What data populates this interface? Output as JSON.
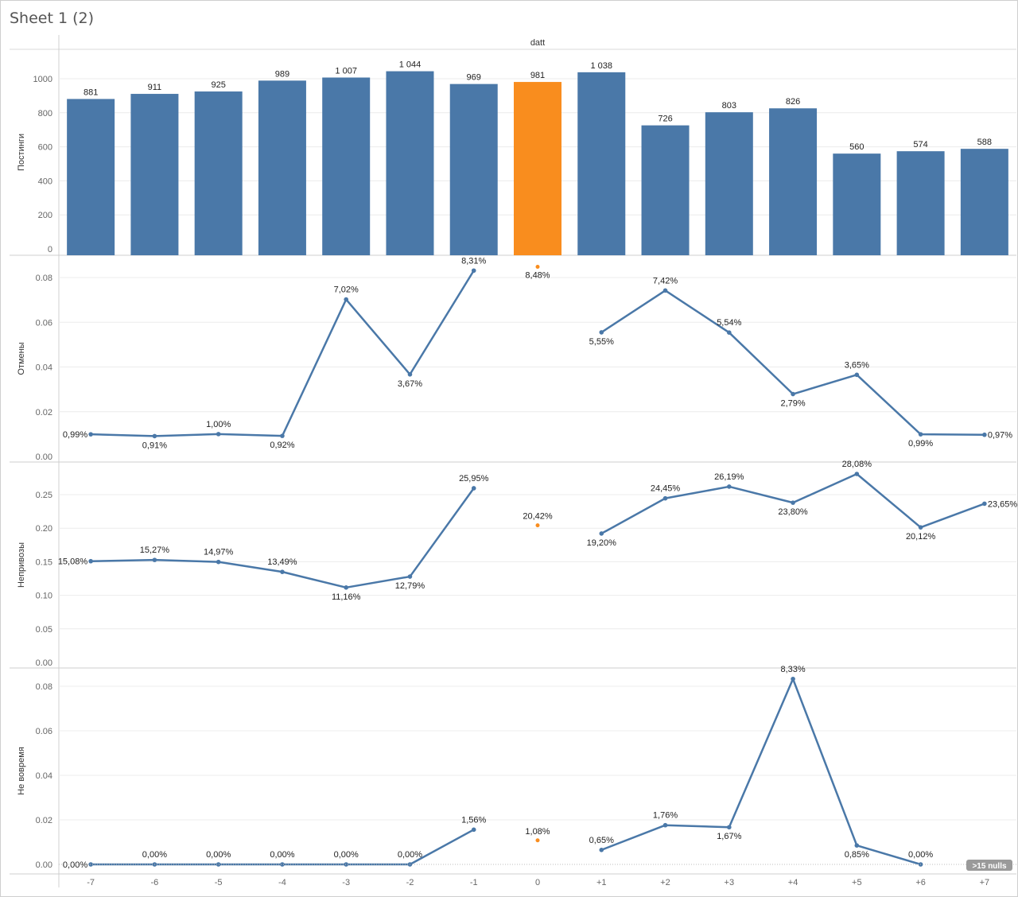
{
  "sheet_title": "Sheet 1 (2)",
  "column_header": "datt",
  "nulls_badge": ">15 nulls",
  "colors": {
    "bar": "#4a78a8",
    "highlight": "#f98d1e",
    "line": "#4a78a8",
    "grid": "#ececec"
  },
  "chart_data": [
    {
      "type": "bar",
      "ylabel": "Постинги",
      "categories": [
        "-7",
        "-6",
        "-5",
        "-4",
        "-3",
        "-2",
        "-1",
        "0",
        "+1",
        "+2",
        "+3",
        "+4",
        "+5",
        "+6",
        "+7"
      ],
      "values": [
        881,
        911,
        925,
        989,
        1007,
        1044,
        969,
        981,
        1038,
        726,
        803,
        826,
        560,
        574,
        588
      ],
      "value_labels": [
        "881",
        "911",
        "925",
        "989",
        "1 007",
        "1 044",
        "969",
        "981",
        "1 038",
        "726",
        "803",
        "826",
        "560",
        "574",
        "588"
      ],
      "highlight_category": "0",
      "ylim": [
        0,
        1150
      ],
      "yticks": [
        "0",
        "200",
        "400",
        "600",
        "800",
        "1000"
      ],
      "grid": true
    },
    {
      "type": "line",
      "ylabel": "Отмены",
      "categories": [
        "-7",
        "-6",
        "-5",
        "-4",
        "-3",
        "-2",
        "-1",
        "0",
        "+1",
        "+2",
        "+3",
        "+4",
        "+5",
        "+6",
        "+7"
      ],
      "values": [
        0.0099,
        0.0091,
        0.01,
        0.0092,
        0.0702,
        0.0367,
        0.0831,
        0.0848,
        0.0555,
        0.0742,
        0.0554,
        0.0279,
        0.0365,
        0.0099,
        0.0097
      ],
      "value_labels": [
        "0,99%",
        "0,91%",
        "1,00%",
        "0,92%",
        "7,02%",
        "3,67%",
        "8,31%",
        "8,48%",
        "5,55%",
        "7,42%",
        "5,54%",
        "2,79%",
        "3,65%",
        "0,99%",
        "0,97%"
      ],
      "highlight_category": "0",
      "ylim": [
        0,
        0.088
      ],
      "yticks": [
        "0.00",
        "0.02",
        "0.04",
        "0.06",
        "0.08"
      ],
      "grid": true
    },
    {
      "type": "line",
      "ylabel": "Непривозы",
      "categories": [
        "-7",
        "-6",
        "-5",
        "-4",
        "-3",
        "-2",
        "-1",
        "0",
        "+1",
        "+2",
        "+3",
        "+4",
        "+5",
        "+6",
        "+7"
      ],
      "values": [
        0.1508,
        0.1527,
        0.1497,
        0.1349,
        0.1116,
        0.1279,
        0.2595,
        0.2042,
        0.192,
        0.2445,
        0.2619,
        0.238,
        0.2808,
        0.2012,
        0.2365
      ],
      "value_labels": [
        "15,08%",
        "15,27%",
        "14,97%",
        "13,49%",
        "11,16%",
        "12,79%",
        "25,95%",
        "20,42%",
        "19,20%",
        "24,45%",
        "26,19%",
        "23,80%",
        "28,08%",
        "20,12%",
        "23,65%"
      ],
      "highlight_category": "0",
      "ylim": [
        0,
        0.295
      ],
      "yticks": [
        "0.00",
        "0.05",
        "0.10",
        "0.15",
        "0.20",
        "0.25"
      ],
      "grid": true
    },
    {
      "type": "line",
      "ylabel": "Не вовремя",
      "categories": [
        "-7",
        "-6",
        "-5",
        "-4",
        "-3",
        "-2",
        "-1",
        "0",
        "+1",
        "+2",
        "+3",
        "+4",
        "+5",
        "+6",
        "+7"
      ],
      "values": [
        0.0,
        0.0,
        0.0,
        0.0,
        0.0,
        0.0,
        0.0156,
        0.0108,
        0.0065,
        0.0176,
        0.0167,
        0.0833,
        0.0085,
        0.0,
        null
      ],
      "value_labels": [
        "0,00%",
        "0,00%",
        "0,00%",
        "0,00%",
        "0,00%",
        "0,00%",
        "1,56%",
        "1,08%",
        "0,65%",
        "1,76%",
        "1,67%",
        "8,33%",
        "0,85%",
        "0,00%",
        ""
      ],
      "highlight_category": "0",
      "ylim": [
        0,
        0.088
      ],
      "yticks": [
        "0.00",
        "0.02",
        "0.04",
        "0.06",
        "0.08"
      ],
      "grid": true
    }
  ]
}
